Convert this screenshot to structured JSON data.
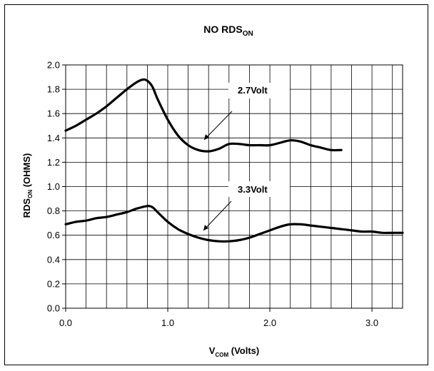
{
  "chart_data": {
    "type": "line",
    "title": {
      "main": "NO RDS",
      "sub": "ON"
    },
    "xlabel": {
      "main": "V",
      "sub": "COM",
      "rest": " (Volts)"
    },
    "ylabel": {
      "main": "RDS",
      "sub": "ON",
      "rest": " (OHMS)"
    },
    "xlim": [
      0,
      3.3
    ],
    "ylim": [
      0,
      2.0
    ],
    "x_ticks": [
      "0.0",
      "1.0",
      "2.0",
      "3.0"
    ],
    "y_ticks": [
      "0.0",
      "0.2",
      "0.4",
      "0.6",
      "0.8",
      "1.0",
      "1.2",
      "1.4",
      "1.6",
      "1.8",
      "2.0"
    ],
    "grid": true,
    "annotations": [
      "2.7Volt",
      "3.3Volt"
    ],
    "series": [
      {
        "x": [
          0.0,
          0.1,
          0.2,
          0.3,
          0.4,
          0.5,
          0.6,
          0.7,
          0.76,
          0.8,
          0.85,
          0.9,
          1.0,
          1.1,
          1.2,
          1.3,
          1.4,
          1.5,
          1.6,
          1.7,
          1.8,
          1.9,
          2.0,
          2.1,
          2.2,
          2.3,
          2.4,
          2.5,
          2.6,
          2.7
        ],
        "values": [
          1.46,
          1.5,
          1.55,
          1.6,
          1.66,
          1.73,
          1.8,
          1.86,
          1.88,
          1.87,
          1.82,
          1.72,
          1.55,
          1.42,
          1.34,
          1.3,
          1.29,
          1.31,
          1.35,
          1.35,
          1.34,
          1.34,
          1.34,
          1.36,
          1.38,
          1.37,
          1.34,
          1.32,
          1.3,
          1.3
        ]
      },
      {
        "x": [
          0.0,
          0.1,
          0.2,
          0.3,
          0.4,
          0.5,
          0.6,
          0.7,
          0.8,
          0.85,
          0.9,
          1.0,
          1.1,
          1.2,
          1.3,
          1.4,
          1.5,
          1.6,
          1.7,
          1.8,
          1.9,
          2.0,
          2.1,
          2.2,
          2.3,
          2.4,
          2.5,
          2.6,
          2.7,
          2.8,
          2.9,
          3.0,
          3.1,
          3.2,
          3.3
        ],
        "values": [
          0.69,
          0.71,
          0.72,
          0.74,
          0.75,
          0.77,
          0.79,
          0.82,
          0.84,
          0.83,
          0.79,
          0.71,
          0.65,
          0.61,
          0.58,
          0.56,
          0.55,
          0.55,
          0.56,
          0.58,
          0.61,
          0.64,
          0.67,
          0.69,
          0.69,
          0.68,
          0.67,
          0.66,
          0.65,
          0.64,
          0.63,
          0.63,
          0.62,
          0.62,
          0.62
        ]
      }
    ]
  }
}
